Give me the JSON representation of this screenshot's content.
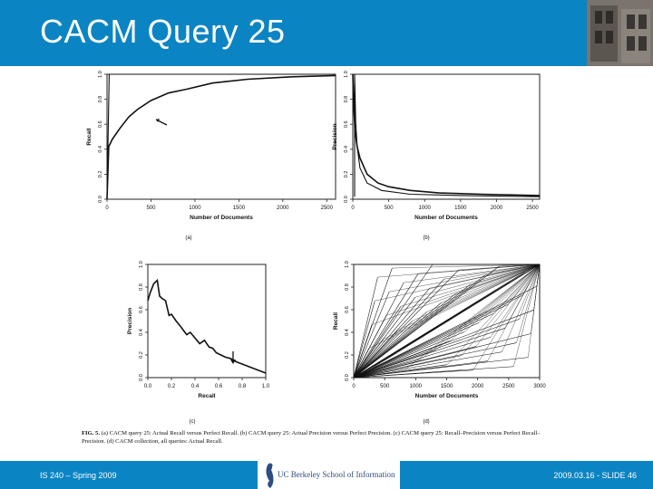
{
  "slide": {
    "title": "CACM Query 25",
    "footer_left": "IS 240 – Spring 2009",
    "footer_right": "2009.03.16 - SLIDE 46",
    "logo_text": "UC Berkeley School of Information"
  },
  "colors": {
    "header": "#0b84c3",
    "footer": "#0b84c3",
    "logo_text": "#2d4e83"
  },
  "figure": {
    "caption_lead": "FIG. 5.",
    "caption_text": "(a) CACM query 25: Actual Recall versus Perfect Recall. (b) CACM query 25: Actual Precision versus Perfect Precision. (c) CACM query 25: Recall–Precision versus Perfect Recall–Precision. (d) CACM collection, all queries: Actual Recall."
  },
  "chart_data": [
    {
      "type": "line",
      "label": "(a)",
      "xlabel": "Number of Documents",
      "ylabel": "Recall",
      "xlim": [
        0,
        2600
      ],
      "ylim": [
        0,
        1.0
      ],
      "xticks": [
        0,
        500,
        1000,
        1500,
        2000,
        2500
      ],
      "yticks": [
        0.0,
        0.2,
        0.4,
        0.6,
        0.8,
        1.0
      ],
      "series": [
        {
          "x": [
            0,
            20,
            60,
            150,
            250,
            350,
            500,
            700,
            900,
            1200,
            1600,
            2100,
            2600
          ],
          "y": [
            0,
            0.42,
            0.48,
            0.57,
            0.66,
            0.72,
            0.79,
            0.85,
            0.88,
            0.93,
            0.96,
            0.98,
            0.99
          ]
        },
        {
          "x": [
            0,
            25,
            2600
          ],
          "y": [
            0,
            1.0,
            1.0
          ]
        }
      ]
    },
    {
      "type": "line",
      "label": "(b)",
      "xlabel": "Number of Documents",
      "ylabel": "Precision",
      "xlim": [
        0,
        2600
      ],
      "ylim": [
        0,
        1.0
      ],
      "xticks": [
        0,
        500,
        1000,
        1500,
        2000,
        2500
      ],
      "yticks": [
        0.0,
        0.2,
        0.4,
        0.6,
        0.8,
        1.0
      ],
      "series": [
        {
          "x": [
            0,
            15,
            30,
            60,
            100,
            200,
            350,
            500,
            800,
            1200,
            1800,
            2600
          ],
          "y": [
            1.0,
            0.72,
            0.55,
            0.42,
            0.33,
            0.2,
            0.13,
            0.1,
            0.07,
            0.05,
            0.04,
            0.03
          ]
        },
        {
          "x": [
            25,
            25,
            40,
            60,
            100,
            200,
            400,
            800,
            1500,
            2600
          ],
          "y": [
            0.02,
            1.0,
            0.62,
            0.42,
            0.25,
            0.13,
            0.07,
            0.04,
            0.03,
            0.02
          ]
        }
      ]
    },
    {
      "type": "line",
      "label": "(c)",
      "xlabel": "Recall",
      "ylabel": "Precision",
      "xlim": [
        0,
        1.0
      ],
      "ylim": [
        0,
        1.0
      ],
      "xticks": [
        0.0,
        0.2,
        0.4,
        0.6,
        0.8,
        1.0
      ],
      "yticks": [
        0.0,
        0.2,
        0.4,
        0.6,
        0.8,
        1.0
      ],
      "series": [
        {
          "x": [
            0.0,
            0.02,
            0.05,
            0.08,
            0.1,
            0.12,
            0.15,
            0.18,
            0.2,
            0.24,
            0.28,
            0.3,
            0.33,
            0.36,
            0.4,
            0.44,
            0.48,
            0.52,
            0.55,
            0.58,
            0.62,
            0.66,
            0.7,
            0.75,
            0.8,
            0.85,
            0.9,
            0.95,
            1.0
          ],
          "y": [
            0.68,
            0.75,
            0.83,
            0.86,
            0.72,
            0.7,
            0.68,
            0.55,
            0.56,
            0.5,
            0.45,
            0.42,
            0.38,
            0.4,
            0.35,
            0.3,
            0.33,
            0.27,
            0.26,
            0.22,
            0.2,
            0.18,
            0.17,
            0.14,
            0.12,
            0.1,
            0.08,
            0.06,
            0.04
          ]
        }
      ]
    },
    {
      "type": "line",
      "label": "(d)",
      "xlabel": "Number of Documents",
      "ylabel": "Recall",
      "xlim": [
        0,
        3000
      ],
      "ylim": [
        0,
        1.0
      ],
      "xticks": [
        0,
        500,
        1000,
        1500,
        2000,
        2500,
        3000
      ],
      "yticks": [
        0.0,
        0.2,
        0.4,
        0.6,
        0.8,
        1.0
      ]
    }
  ]
}
